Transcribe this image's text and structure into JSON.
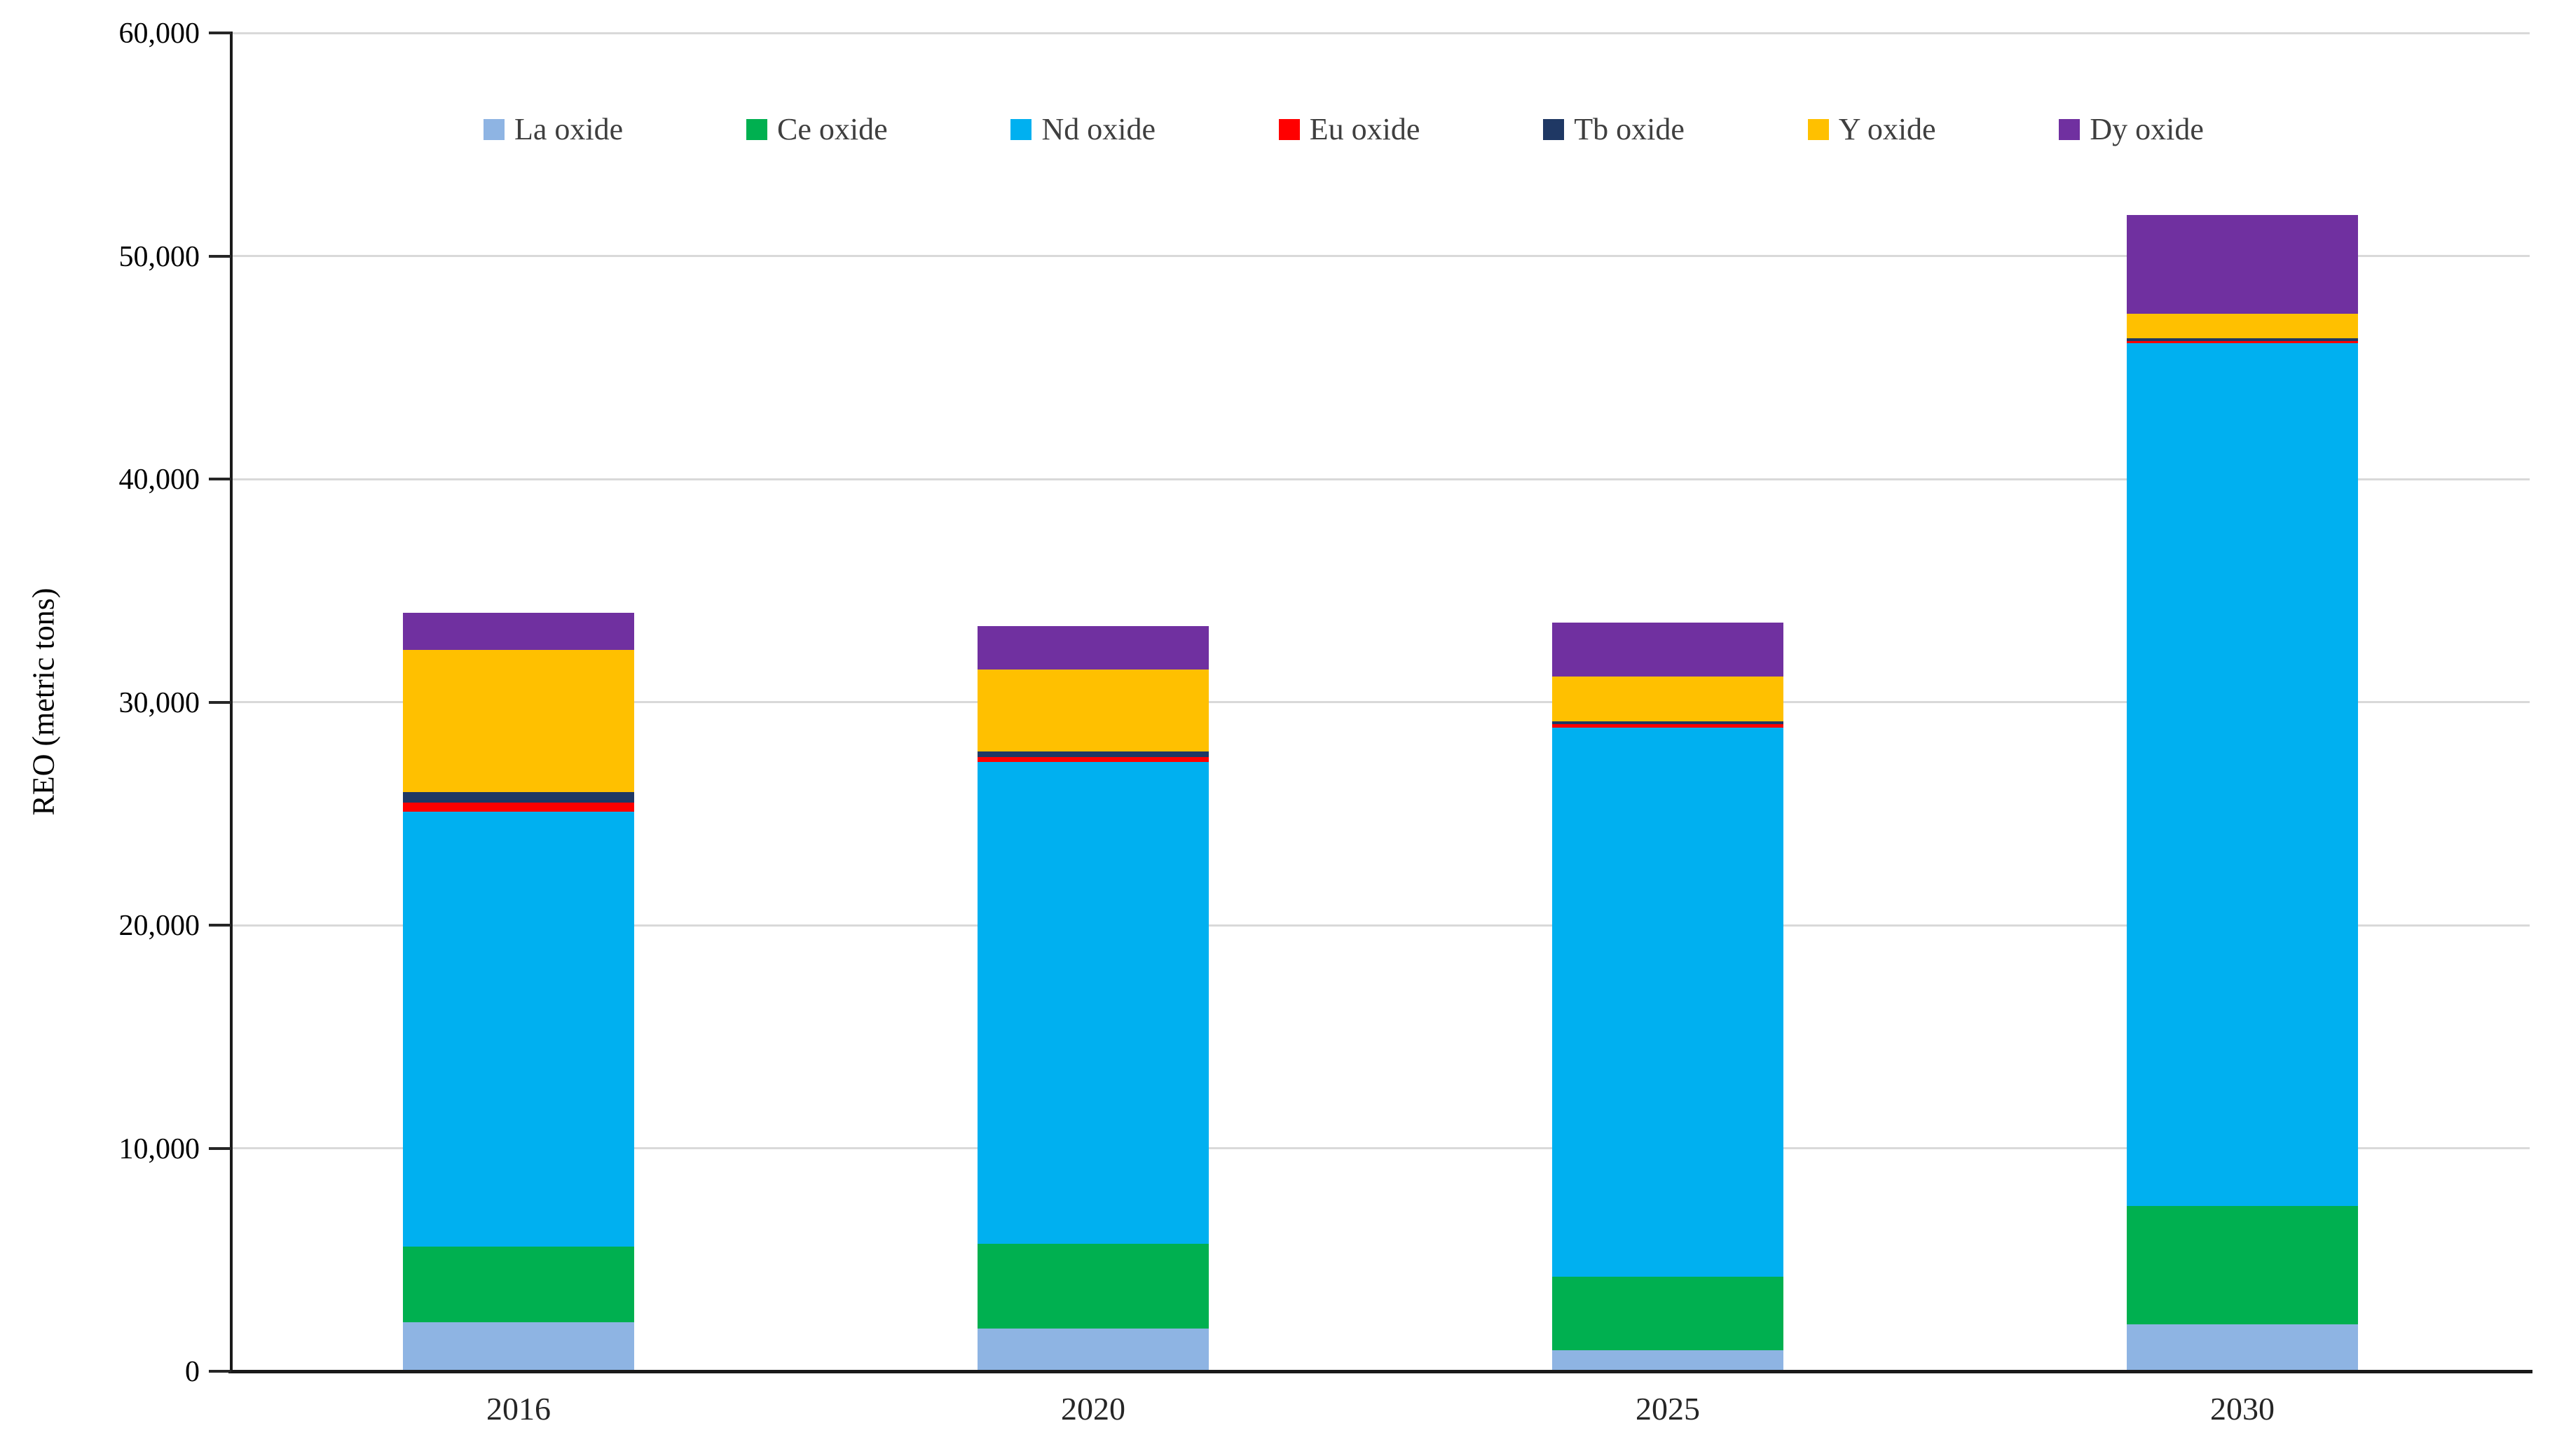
{
  "figure": {
    "background": "#ffffff",
    "axis_color": "#1a1a1a",
    "gridline_color": "#d9d9d9",
    "text_color": "#000000",
    "legend_text_color": "#3f3f3f"
  },
  "chart_data": {
    "type": "bar",
    "stacked": true,
    "title": "",
    "xlabel": "",
    "ylabel": "REO (metric tons)",
    "categories": [
      "2016",
      "2020",
      "2025",
      "2030"
    ],
    "series": [
      {
        "name": "La oxide",
        "color": "#8EB4E3",
        "values": [
          2200,
          1900,
          950,
          2100
        ]
      },
      {
        "name": "Ce oxide",
        "color": "#00B050",
        "values": [
          3400,
          3800,
          3300,
          5300
        ]
      },
      {
        "name": "Nd oxide",
        "color": "#00B0F0",
        "values": [
          19500,
          21600,
          24600,
          38700
        ]
      },
      {
        "name": "Eu oxide",
        "color": "#FF0000",
        "values": [
          400,
          250,
          150,
          100
        ]
      },
      {
        "name": "Tb oxide",
        "color": "#1F3864",
        "values": [
          450,
          250,
          150,
          100
        ]
      },
      {
        "name": "Y oxide",
        "color": "#FFC000",
        "values": [
          6400,
          3650,
          2000,
          1100
        ]
      },
      {
        "name": "Dy oxide",
        "color": "#7030A0",
        "values": [
          1650,
          1950,
          2400,
          4450
        ]
      }
    ],
    "ylim": [
      0,
      60000
    ],
    "ytick_step": 10000,
    "ytick_labels": [
      "0",
      "10,000",
      "20,000",
      "30,000",
      "40,000",
      "50,000",
      "60,000"
    ],
    "grid": true,
    "legend_position": "top"
  }
}
